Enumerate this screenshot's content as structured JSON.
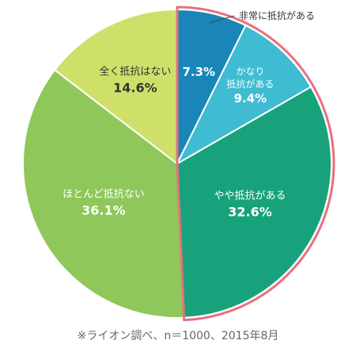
{
  "chart_data": {
    "type": "pie",
    "slices": [
      {
        "name": "非常に抵抗がある",
        "value": 7.3,
        "value_label": "7.3%",
        "color": "#1a86b8"
      },
      {
        "name": "かなり抵抗がある",
        "value": 9.4,
        "value_label": "9.4%",
        "color": "#3fbcd2"
      },
      {
        "name": "やや抵抗がある",
        "value": 32.6,
        "value_label": "32.6%",
        "color": "#17a27b"
      },
      {
        "name": "ほとんど抵抗ない",
        "value": 36.1,
        "value_label": "36.1%",
        "color": "#8fc75a"
      },
      {
        "name": "全く抵抗はない",
        "value": 14.6,
        "value_label": "14.6%",
        "color": "#cfe06a"
      }
    ],
    "labels": {
      "callout": "非常に抵抗がある",
      "slice2_line1": "かなり",
      "slice2_line2": "抵抗がある",
      "slice3": "やや抵抗がある",
      "slice4": "ほとんど抵抗ない",
      "slice5": "全く抵抗はない"
    },
    "highlight_color": "#e8707e"
  },
  "footer": {
    "source": "※ライオン調べ、n＝1000、2015年8月"
  }
}
